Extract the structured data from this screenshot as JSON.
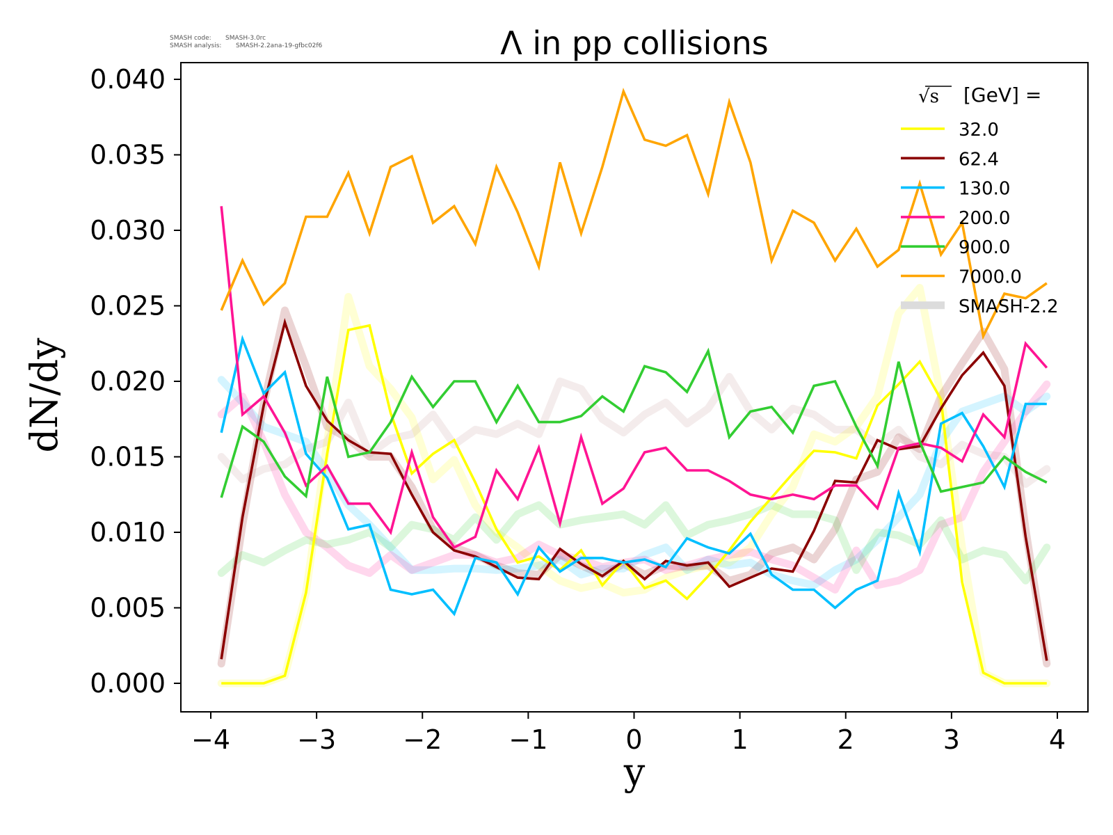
{
  "meta": {
    "code_label": "SMASH code:",
    "code_value": "SMASH-3.0rc",
    "analysis_label": "SMASH analysis:",
    "analysis_value": "SMASH-2.2ana-19-gfbc02f6"
  },
  "chart_data": {
    "type": "line",
    "title": "Λ in pp collisions",
    "xlabel": "y",
    "ylabel": "dN/dy",
    "xlim": [
      -4.3,
      4.3
    ],
    "ylim": [
      -0.0019,
      0.0409
    ],
    "xticks": [
      -4,
      -3,
      -2,
      -1,
      0,
      1,
      2,
      3,
      4
    ],
    "xtick_labels": [
      "−4",
      "−3",
      "−2",
      "−1",
      "0",
      "1",
      "2",
      "3",
      "4"
    ],
    "yticks": [
      0.0,
      0.005,
      0.01,
      0.015,
      0.02,
      0.025,
      0.03,
      0.035,
      0.04
    ],
    "ytick_labels": [
      "0.000",
      "0.005",
      "0.010",
      "0.015",
      "0.020",
      "0.025",
      "0.030",
      "0.035",
      "0.040"
    ],
    "grid": false,
    "legend": {
      "placement": "top-right",
      "title_sqrt": "√s",
      "title_rest": "[GeV] =",
      "reference_label": "SMASH-2.2",
      "reference_color": "#dcdcdc"
    },
    "x": [
      -3.9,
      -3.7,
      -3.5,
      -3.3,
      -3.1,
      -2.9,
      -2.7,
      -2.5,
      -2.3,
      -2.1,
      -1.9,
      -1.7,
      -1.5,
      -1.3,
      -1.1,
      -0.9,
      -0.7,
      -0.5,
      -0.3,
      -0.1,
      0.1,
      0.3,
      0.5,
      0.7,
      0.9,
      1.1,
      1.3,
      1.5,
      1.7,
      1.9,
      2.1,
      2.3,
      2.5,
      2.7,
      2.9,
      3.1,
      3.3,
      3.5,
      3.7,
      3.9
    ],
    "series": [
      {
        "name": "32.0",
        "color": "#ffff00",
        "values": [
          0.0,
          0.0,
          0.0,
          0.0005,
          0.006,
          0.0152,
          0.0234,
          0.0237,
          0.0179,
          0.0139,
          0.0152,
          0.0161,
          0.0133,
          0.0102,
          0.008,
          0.0084,
          0.0075,
          0.0088,
          0.0065,
          0.0081,
          0.0063,
          0.0068,
          0.0056,
          0.0071,
          0.0088,
          0.0107,
          0.0123,
          0.0139,
          0.0154,
          0.0153,
          0.0149,
          0.0184,
          0.0198,
          0.0213,
          0.0188,
          0.0067,
          0.0007,
          0.0,
          0.0,
          0.0
        ]
      },
      {
        "name": "62.4",
        "color": "#8b0000",
        "values": [
          0.0016,
          0.011,
          0.0184,
          0.0239,
          0.0197,
          0.0174,
          0.0161,
          0.0153,
          0.0152,
          0.0125,
          0.01,
          0.0088,
          0.0084,
          0.0077,
          0.007,
          0.0069,
          0.0089,
          0.0079,
          0.0071,
          0.0081,
          0.0069,
          0.0081,
          0.0078,
          0.008,
          0.0064,
          0.007,
          0.0076,
          0.0074,
          0.0101,
          0.0134,
          0.0133,
          0.0161,
          0.0155,
          0.0157,
          0.0182,
          0.0204,
          0.0219,
          0.0197,
          0.0097,
          0.0015
        ]
      },
      {
        "name": "130.0",
        "color": "#00bfff",
        "values": [
          0.0166,
          0.0228,
          0.0192,
          0.0206,
          0.0152,
          0.0136,
          0.0102,
          0.0105,
          0.0062,
          0.0059,
          0.0062,
          0.0046,
          0.0083,
          0.008,
          0.0059,
          0.009,
          0.0074,
          0.0083,
          0.0083,
          0.008,
          0.0082,
          0.0077,
          0.0096,
          0.009,
          0.0086,
          0.0099,
          0.0072,
          0.0062,
          0.0062,
          0.005,
          0.0062,
          0.0068,
          0.0126,
          0.0087,
          0.0172,
          0.0179,
          0.0157,
          0.013,
          0.0185,
          0.0185
        ]
      },
      {
        "name": "200.0",
        "color": "#ff1493",
        "values": [
          0.0316,
          0.0178,
          0.019,
          0.0166,
          0.0131,
          0.0144,
          0.0119,
          0.0119,
          0.01,
          0.0153,
          0.011,
          0.009,
          0.0097,
          0.0141,
          0.0122,
          0.0156,
          0.0106,
          0.0163,
          0.0119,
          0.0129,
          0.0153,
          0.0156,
          0.0141,
          0.0141,
          0.0134,
          0.0125,
          0.0122,
          0.0125,
          0.0122,
          0.0131,
          0.0131,
          0.0116,
          0.0156,
          0.0159,
          0.0156,
          0.0147,
          0.0178,
          0.0163,
          0.0225,
          0.0209
        ]
      },
      {
        "name": "900.0",
        "color": "#32cd32",
        "values": [
          0.0123,
          0.017,
          0.016,
          0.0137,
          0.0124,
          0.0203,
          0.015,
          0.0153,
          0.0173,
          0.0203,
          0.0183,
          0.02,
          0.02,
          0.0173,
          0.0197,
          0.0173,
          0.0173,
          0.0177,
          0.019,
          0.018,
          0.021,
          0.0206,
          0.0193,
          0.022,
          0.0163,
          0.018,
          0.0183,
          0.0166,
          0.0197,
          0.02,
          0.017,
          0.0144,
          0.0213,
          0.016,
          0.0127,
          0.013,
          0.0133,
          0.015,
          0.014,
          0.0133
        ]
      },
      {
        "name": "7000.0",
        "color": "#ffa500",
        "values": [
          0.0247,
          0.028,
          0.0251,
          0.0265,
          0.0309,
          0.0309,
          0.0338,
          0.0298,
          0.0342,
          0.0349,
          0.0305,
          0.0316,
          0.0291,
          0.0342,
          0.0312,
          0.0276,
          0.0345,
          0.0298,
          0.0342,
          0.0392,
          0.036,
          0.0356,
          0.0363,
          0.0324,
          0.0385,
          0.0345,
          0.028,
          0.0313,
          0.0305,
          0.028,
          0.0301,
          0.0276,
          0.0287,
          0.0331,
          0.0284,
          0.0305,
          0.023,
          0.0258,
          0.0255,
          0.0265
        ]
      }
    ],
    "reference_series": [
      {
        "name": "SMASH-2.2 32.0",
        "color": "#ffff00",
        "values": [
          0.0,
          0.0,
          0.0,
          0.0005,
          0.006,
          0.016,
          0.0256,
          0.021,
          0.0195,
          0.0176,
          0.0135,
          0.0148,
          0.0118,
          0.01,
          0.009,
          0.0078,
          0.0068,
          0.0063,
          0.0066,
          0.006,
          0.0062,
          0.007,
          0.0075,
          0.0078,
          0.008,
          0.009,
          0.0112,
          0.013,
          0.0165,
          0.016,
          0.017,
          0.019,
          0.0245,
          0.0262,
          0.019,
          0.009,
          0.0007,
          0.0,
          0.0,
          0.0
        ]
      },
      {
        "name": "SMASH-2.2 62.4",
        "color": "#8b0000",
        "values": [
          0.0013,
          0.0105,
          0.0185,
          0.0247,
          0.021,
          0.017,
          0.0162,
          0.015,
          0.015,
          0.013,
          0.0102,
          0.009,
          0.0085,
          0.0078,
          0.0073,
          0.0072,
          0.0085,
          0.0078,
          0.0072,
          0.0079,
          0.0072,
          0.0078,
          0.0077,
          0.0078,
          0.0068,
          0.0072,
          0.0086,
          0.009,
          0.0082,
          0.0102,
          0.0135,
          0.014,
          0.0163,
          0.0155,
          0.019,
          0.0212,
          0.0233,
          0.0208,
          0.0102,
          0.0013
        ]
      },
      {
        "name": "SMASH-2.2 130.0",
        "color": "#00bfff",
        "values": [
          0.0201,
          0.0186,
          0.017,
          0.0165,
          0.016,
          0.014,
          0.0118,
          0.0105,
          0.009,
          0.0075,
          0.0075,
          0.0076,
          0.0076,
          0.0075,
          0.0076,
          0.0078,
          0.0082,
          0.0072,
          0.0076,
          0.0076,
          0.0085,
          0.009,
          0.0075,
          0.0082,
          0.0078,
          0.008,
          0.0072,
          0.0068,
          0.0065,
          0.0075,
          0.0082,
          0.0095,
          0.011,
          0.0125,
          0.016,
          0.018,
          0.0185,
          0.019,
          0.018,
          0.019
        ]
      },
      {
        "name": "SMASH-2.2 200.0",
        "color": "#ff1493",
        "values": [
          0.0178,
          0.019,
          0.016,
          0.0125,
          0.01,
          0.009,
          0.0078,
          0.0073,
          0.0085,
          0.0075,
          0.008,
          0.0085,
          0.0085,
          0.008,
          0.0083,
          0.0092,
          0.0085,
          0.0082,
          0.0077,
          0.008,
          0.0082,
          0.0075,
          0.0078,
          0.0082,
          0.0085,
          0.0087,
          0.0082,
          0.0078,
          0.007,
          0.0062,
          0.0088,
          0.0065,
          0.0068,
          0.0075,
          0.0105,
          0.011,
          0.014,
          0.016,
          0.018,
          0.0198
        ]
      },
      {
        "name": "SMASH-2.2 900.0",
        "color": "#32cd32",
        "values": [
          0.0073,
          0.0085,
          0.008,
          0.0088,
          0.0095,
          0.0092,
          0.0095,
          0.01,
          0.009,
          0.0105,
          0.0102,
          0.0095,
          0.011,
          0.0095,
          0.0112,
          0.0118,
          0.0105,
          0.0108,
          0.011,
          0.0112,
          0.0105,
          0.0118,
          0.0098,
          0.0105,
          0.0108,
          0.0112,
          0.0118,
          0.0112,
          0.0112,
          0.0108,
          0.0075,
          0.01,
          0.0098,
          0.0092,
          0.0108,
          0.0082,
          0.0088,
          0.0085,
          0.0068,
          0.009
        ]
      },
      {
        "name": "SMASH-2.2 7000.0",
        "color": "#bc8f8f",
        "values": [
          0.015,
          0.0135,
          0.0142,
          0.0145,
          0.0155,
          0.016,
          0.0186,
          0.0152,
          0.0162,
          0.0165,
          0.0178,
          0.0158,
          0.0168,
          0.0165,
          0.0172,
          0.0165,
          0.02,
          0.0195,
          0.0175,
          0.0166,
          0.0178,
          0.0186,
          0.0172,
          0.0182,
          0.0203,
          0.018,
          0.0168,
          0.0182,
          0.0178,
          0.0168,
          0.0168,
          0.0158,
          0.0168,
          0.015,
          0.0145,
          0.0158,
          0.0152,
          0.015,
          0.0132,
          0.0142
        ]
      }
    ]
  }
}
